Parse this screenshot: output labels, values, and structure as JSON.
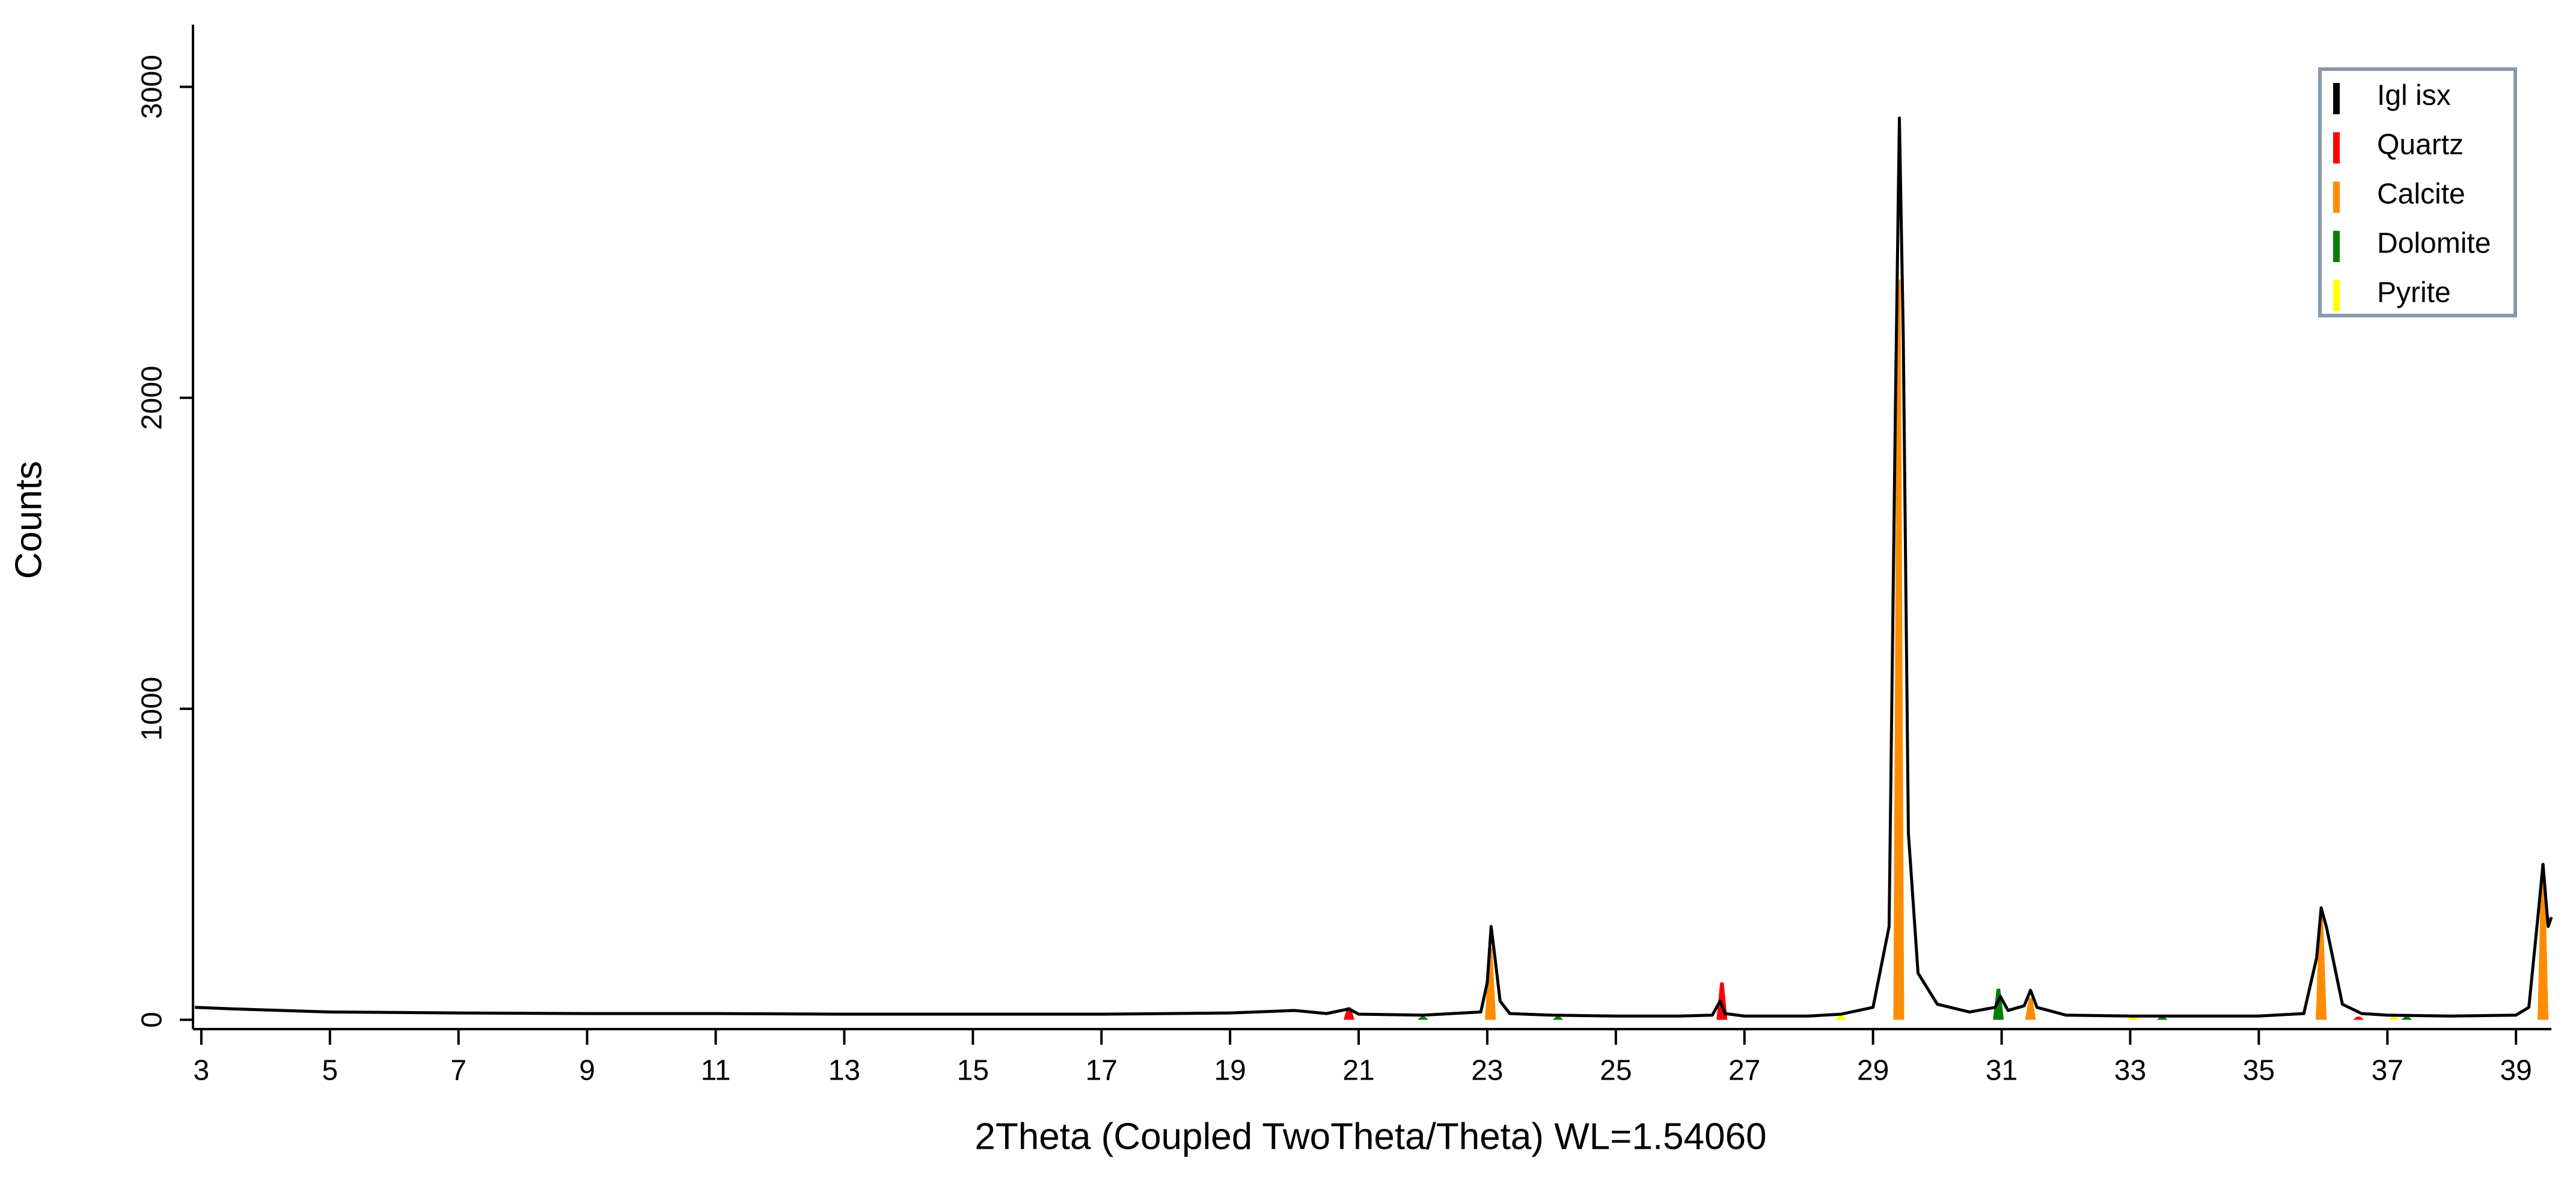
{
  "chart_data": {
    "type": "line",
    "x_label": "2Theta (Coupled TwoTheta/Theta) WL=1.54060",
    "y_label": "Counts",
    "xlim": [
      2.87,
      39.55
    ],
    "ylim": [
      -30,
      3200
    ],
    "xticks": [
      3,
      5,
      7,
      9,
      11,
      13,
      15,
      17,
      19,
      21,
      23,
      25,
      27,
      29,
      31,
      33,
      35,
      37,
      39
    ],
    "yticks": [
      0,
      1000,
      2000,
      3000
    ],
    "legend": "upper right",
    "series": [
      {
        "name": "Igl isx",
        "color": "#000000",
        "type": "line",
        "x": [
          2.9,
          3.5,
          5,
          7,
          9,
          11,
          13,
          15,
          17,
          19,
          20,
          20.5,
          20.85,
          21,
          22,
          22.9,
          23.0,
          23.06,
          23.12,
          23.2,
          23.35,
          24,
          25,
          26,
          26.5,
          26.62,
          26.7,
          27,
          28,
          28.5,
          29.0,
          29.25,
          29.35,
          29.41,
          29.47,
          29.55,
          29.7,
          30,
          30.5,
          30.9,
          30.98,
          31.1,
          31.35,
          31.45,
          31.55,
          32,
          33,
          34,
          35,
          35.7,
          35.9,
          35.97,
          36.05,
          36.15,
          36.3,
          36.6,
          37,
          38,
          39,
          39.2,
          39.35,
          39.42,
          39.5,
          39.55
        ],
        "values": [
          40,
          35,
          25,
          22,
          20,
          20,
          18,
          18,
          18,
          22,
          30,
          20,
          35,
          18,
          15,
          25,
          120,
          300,
          200,
          60,
          20,
          15,
          12,
          12,
          15,
          60,
          20,
          12,
          12,
          18,
          40,
          300,
          2000,
          2900,
          2200,
          600,
          150,
          50,
          25,
          40,
          75,
          30,
          45,
          95,
          40,
          15,
          12,
          12,
          12,
          20,
          200,
          360,
          300,
          200,
          50,
          20,
          15,
          12,
          15,
          40,
          350,
          500,
          300,
          330
        ]
      },
      {
        "name": "Quartz",
        "color": "#ff0000",
        "type": "peaks",
        "x": [
          20.85,
          26.65,
          36.55
        ],
        "values": [
          40,
          120,
          10
        ]
      },
      {
        "name": "Calcite",
        "color": "#ff8c00",
        "type": "peaks",
        "x": [
          23.05,
          29.4,
          31.45,
          35.97,
          39.42
        ],
        "values": [
          230,
          2380,
          70,
          340,
          500
        ]
      },
      {
        "name": "Dolomite",
        "color": "#008000",
        "type": "peaks",
        "x": [
          22.0,
          24.1,
          30.95,
          33.5,
          37.3
        ],
        "values": [
          10,
          10,
          100,
          10,
          10
        ]
      },
      {
        "name": "Pyrite",
        "color": "#ffff00",
        "type": "peaks",
        "x": [
          28.5,
          33.05,
          37.1
        ],
        "values": [
          15,
          15,
          10
        ]
      }
    ]
  }
}
